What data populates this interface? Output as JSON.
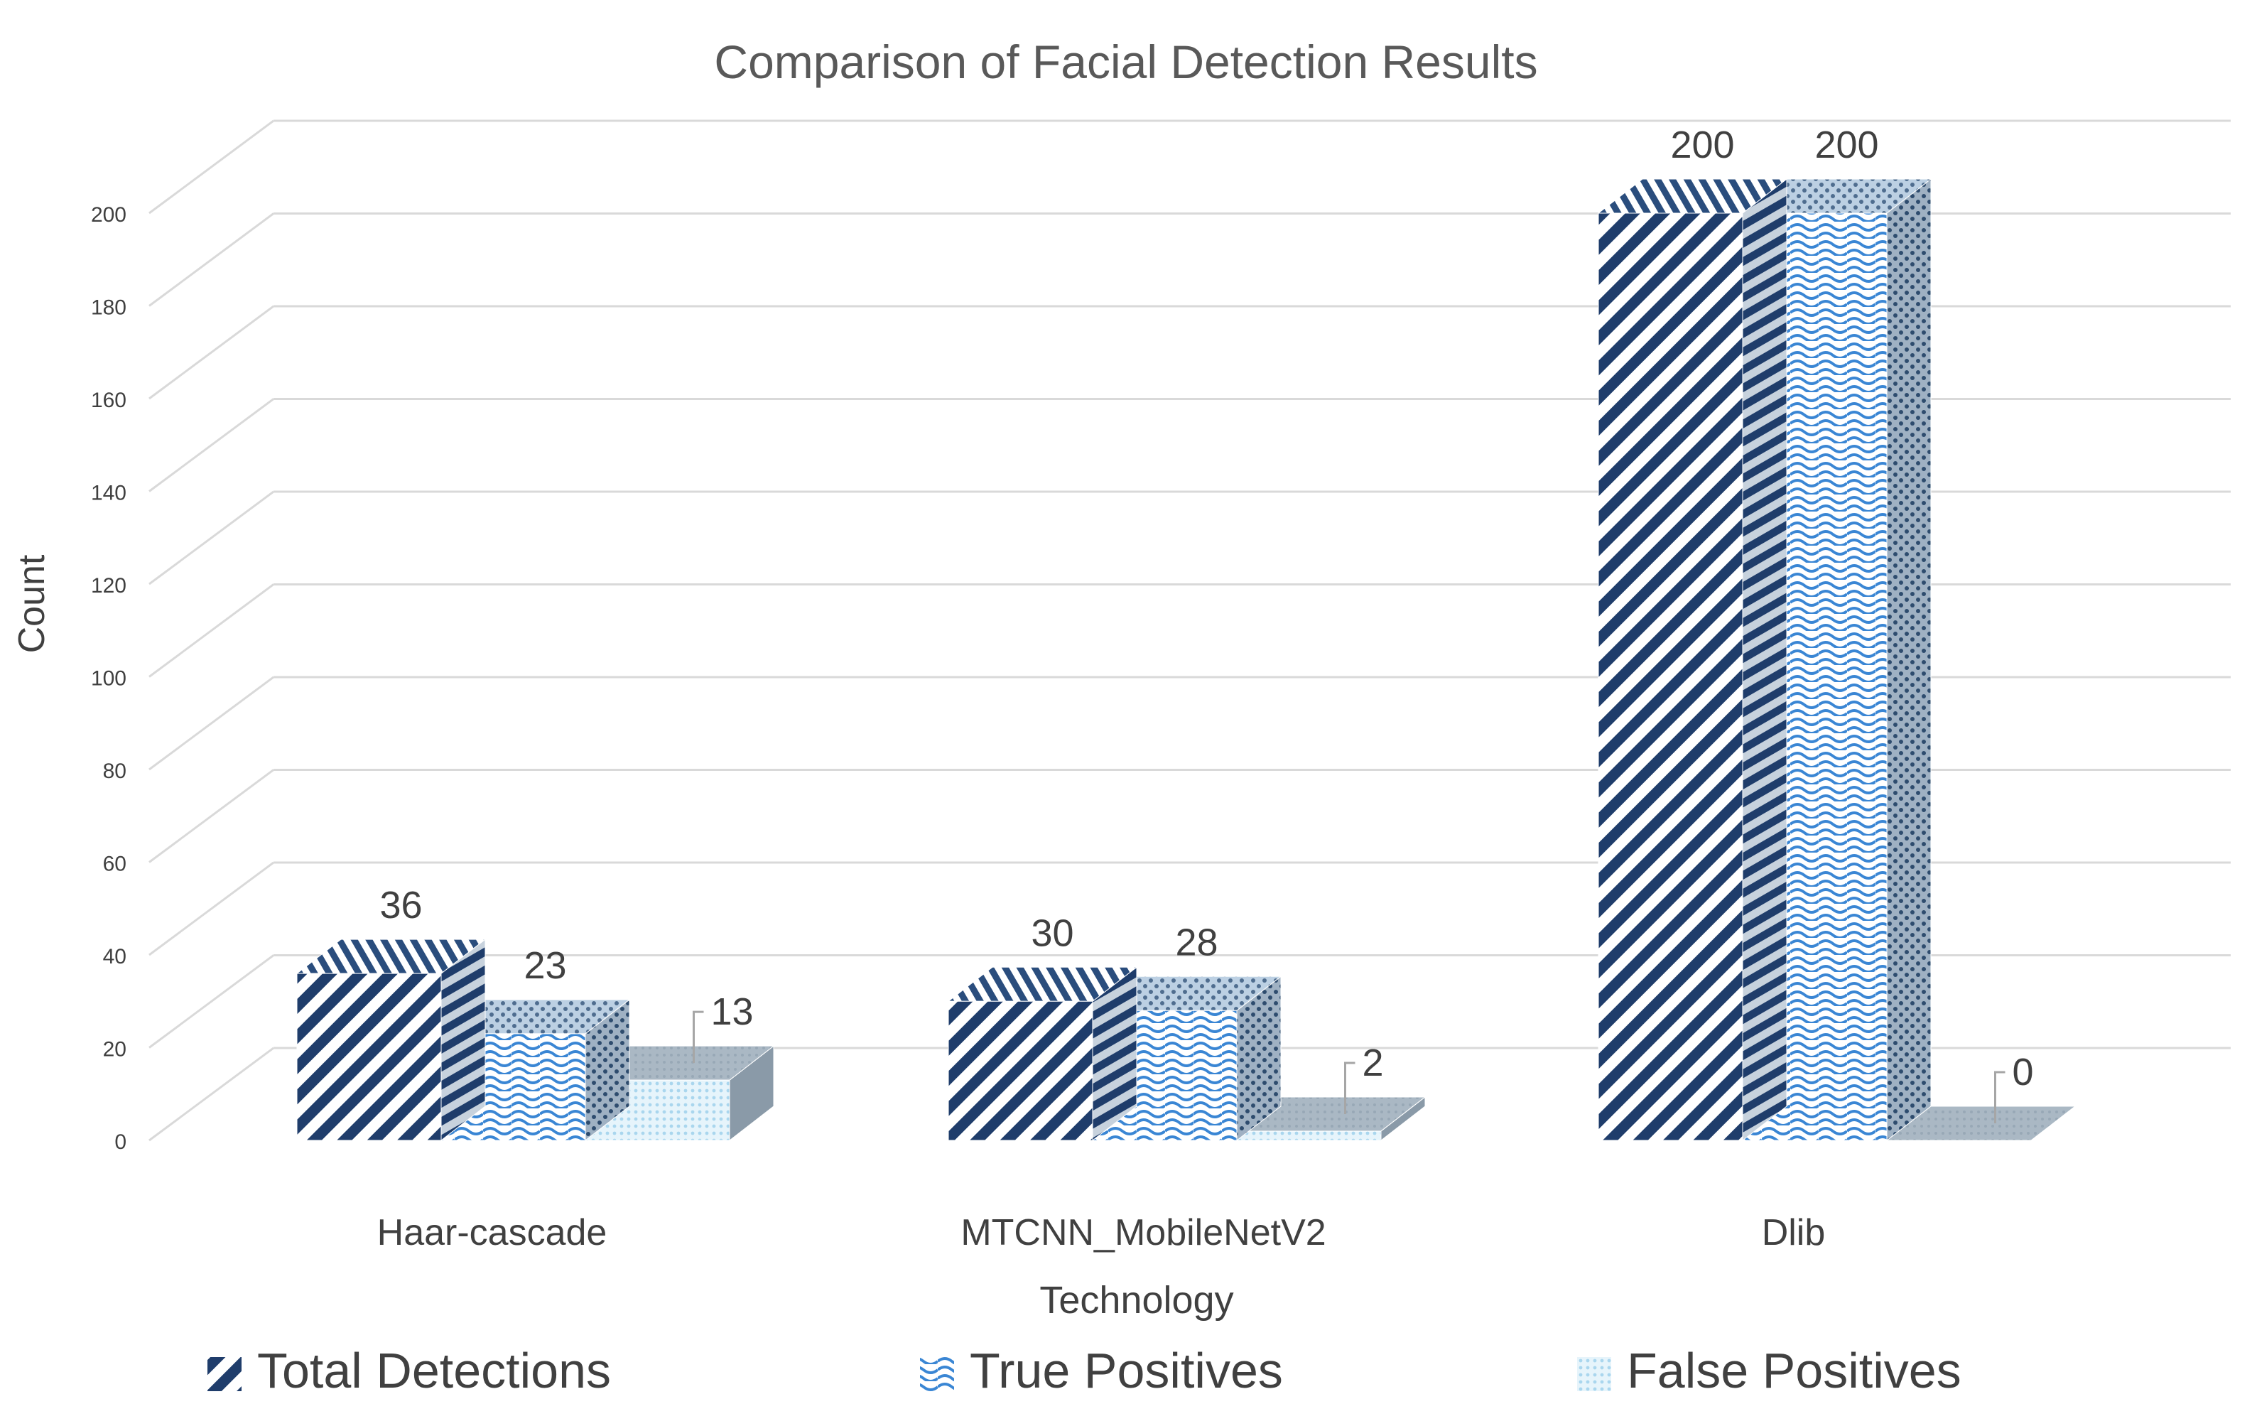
{
  "chart_data": {
    "type": "bar",
    "variant": "3d-clustered-column",
    "title": "Comparison of Facial Detection Results",
    "xlabel": "Technology",
    "ylabel": "Count",
    "categories": [
      "Haar-cascade",
      "MTCNN_MobileNetV2",
      "Dlib"
    ],
    "series": [
      {
        "name": "Total Detections",
        "values": [
          36,
          30,
          200
        ],
        "pattern": "diagonal-stripes",
        "color": "#1f3d6b"
      },
      {
        "name": "True Positives",
        "values": [
          23,
          28,
          200
        ],
        "pattern": "waves",
        "color": "#3a86d4"
      },
      {
        "name": "False Positives",
        "values": [
          13,
          2,
          0
        ],
        "pattern": "dots",
        "color": "#a9d6ee"
      }
    ],
    "data_labels": [
      [
        "36",
        "23",
        "13"
      ],
      [
        "30",
        "28",
        "2"
      ],
      [
        "200",
        "200",
        "0"
      ]
    ],
    "ylim": [
      0,
      200
    ],
    "yticks": [
      0,
      20,
      40,
      60,
      80,
      100,
      120,
      140,
      160,
      180,
      200
    ],
    "grid": true,
    "legend_position": "bottom",
    "colors": {
      "gridline": "#d9d9d9",
      "side_face": "#8a9aa8",
      "text": "#404040"
    }
  }
}
